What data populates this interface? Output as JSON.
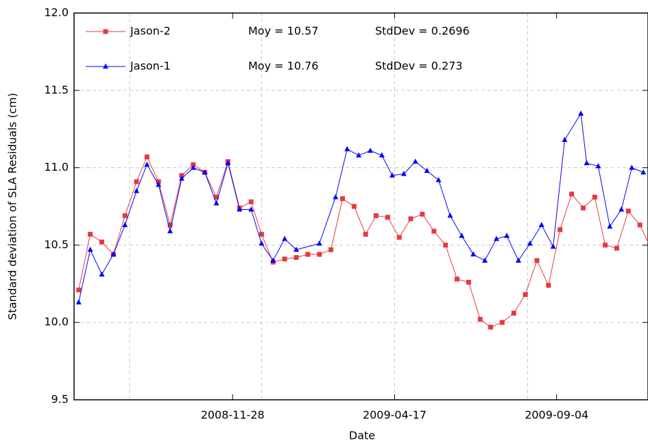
{
  "chart_data": {
    "type": "line",
    "xlabel": "Date",
    "ylabel": "Standard deviation of SLA Residuals (cm)",
    "xlim": [
      "2008-07-14",
      "2009-11-22"
    ],
    "xticks": [
      "2008-11-28",
      "2009-04-17",
      "2009-09-04"
    ],
    "xgrid": [
      "2008-08-31",
      "2008-12-23",
      "2009-04-17",
      "2009-08-10"
    ],
    "ylim": [
      9.5,
      12
    ],
    "yticks": [
      9.5,
      {
        "value": 10,
        "label": "10.0"
      },
      10.5,
      {
        "value": 11,
        "label": "11.0"
      },
      11.5,
      {
        "value": 12,
        "label": "12.0"
      }
    ],
    "grid": true,
    "series": [
      {
        "name": "Jason-2",
        "color": "#e8383d",
        "marker": "square",
        "mean_label": "Moy = 10.57",
        "std_label": "StdDev = 0.2696",
        "x": [
          "2008-07-18",
          "2008-07-28",
          "2008-08-07",
          "2008-08-17",
          "2008-08-27",
          "2008-09-06",
          "2008-09-15",
          "2008-09-25",
          "2008-10-05",
          "2008-10-15",
          "2008-10-25",
          "2008-11-04",
          "2008-11-14",
          "2008-11-24",
          "2008-12-04",
          "2008-12-14",
          "2008-12-23",
          "2009-01-02",
          "2009-01-12",
          "2009-01-22",
          "2009-02-01",
          "2009-02-11",
          "2009-02-21",
          "2009-03-03",
          "2009-03-13",
          "2009-03-23",
          "2009-04-01",
          "2009-04-11",
          "2009-04-21",
          "2009-05-01",
          "2009-05-11",
          "2009-05-21",
          "2009-05-31",
          "2009-06-10",
          "2009-06-20",
          "2009-06-30",
          "2009-07-09",
          "2009-07-19",
          "2009-07-29",
          "2009-08-08",
          "2009-08-18",
          "2009-08-28",
          "2009-09-07",
          "2009-09-17",
          "2009-09-27",
          "2009-10-07",
          "2009-10-16",
          "2009-10-26",
          "2009-11-05",
          "2009-11-15",
          "2009-11-25"
        ],
        "values": [
          10.21,
          10.57,
          10.52,
          10.44,
          10.69,
          10.91,
          11.07,
          10.91,
          10.63,
          10.95,
          11.02,
          10.97,
          10.81,
          11.04,
          10.74,
          10.78,
          10.57,
          10.39,
          10.41,
          10.42,
          10.44,
          10.44,
          10.47,
          10.8,
          10.75,
          10.57,
          10.69,
          10.68,
          10.55,
          10.67,
          10.7,
          10.59,
          10.5,
          10.28,
          10.26,
          10.02,
          9.97,
          10.0,
          10.06,
          10.18,
          10.4,
          10.24,
          10.6,
          10.83,
          10.74,
          10.81,
          10.5,
          10.48,
          10.72,
          10.63,
          10.47
        ]
      },
      {
        "name": "Jason-1",
        "color": "#0000ff",
        "marker": "triangle",
        "mean_label": "Moy = 10.76",
        "std_label": "StdDev = 0.273",
        "x": [
          "2008-07-18",
          "2008-07-28",
          "2008-08-07",
          "2008-08-17",
          "2008-08-27",
          "2008-09-06",
          "2008-09-15",
          "2008-09-25",
          "2008-10-05",
          "2008-10-15",
          "2008-10-25",
          "2008-11-04",
          "2008-11-14",
          "2008-11-24",
          "2008-12-04",
          "2008-12-14",
          "2008-12-23",
          "2009-01-02",
          "2009-01-12",
          "2009-01-22",
          "2009-02-11",
          "2009-02-25",
          "2009-03-07",
          "2009-03-17",
          "2009-03-27",
          "2009-04-06",
          "2009-04-15",
          "2009-04-25",
          "2009-05-05",
          "2009-05-15",
          "2009-05-25",
          "2009-06-04",
          "2009-06-14",
          "2009-06-24",
          "2009-07-04",
          "2009-07-14",
          "2009-07-23",
          "2009-08-02",
          "2009-08-12",
          "2009-08-22",
          "2009-09-01",
          "2009-09-11",
          "2009-09-25",
          "2009-09-30",
          "2009-10-10",
          "2009-10-20",
          "2009-10-30",
          "2009-11-08",
          "2009-11-18"
        ],
        "values": [
          10.13,
          10.47,
          10.31,
          10.44,
          10.63,
          10.85,
          11.02,
          10.89,
          10.59,
          10.93,
          11.0,
          10.97,
          10.77,
          11.03,
          10.73,
          10.73,
          10.51,
          10.4,
          10.54,
          10.47,
          10.51,
          10.81,
          11.12,
          11.08,
          11.11,
          11.08,
          10.95,
          10.96,
          11.04,
          10.98,
          10.92,
          10.69,
          10.56,
          10.44,
          10.4,
          10.54,
          10.56,
          10.4,
          10.51,
          10.63,
          10.49,
          11.18,
          11.35,
          11.03,
          11.01,
          10.62,
          10.73,
          11.0,
          10.97
        ]
      }
    ]
  }
}
